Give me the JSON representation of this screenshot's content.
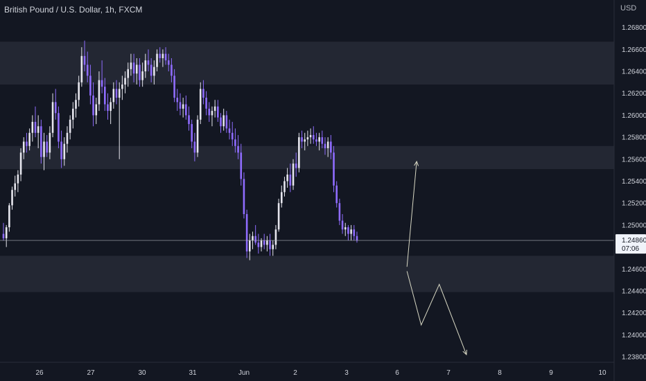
{
  "header": {
    "symbol_title": "British Pound / U.S. Dollar, 1h, FXCM",
    "currency": "USD"
  },
  "colors": {
    "background": "#131722",
    "zone": "#2a2e39",
    "bull": "#e6e6ee",
    "bear": "#8f6cff",
    "axis_text": "#d1d4dc",
    "price_line": "#b2b5be",
    "drawing": "#d8d8c4"
  },
  "price_label": {
    "value": "1.24860",
    "countdown": "07:06"
  },
  "chart_data": {
    "type": "candlestick",
    "ylim": [
      1.2375,
      1.2705
    ],
    "y_ticks": [
      "1.26800",
      "1.26600",
      "1.26400",
      "1.26200",
      "1.26000",
      "1.25800",
      "1.25600",
      "1.25400",
      "1.25200",
      "1.25000",
      "1.24600",
      "1.24400",
      "1.24200",
      "1.24000",
      "1.23800"
    ],
    "x_ticks": [
      "26",
      "27",
      "30",
      "31",
      "Jun",
      "2",
      "3",
      "6",
      "7",
      "8",
      "9",
      "10"
    ],
    "last_price": 1.2486,
    "zones": [
      {
        "from": 1.2628,
        "to": 1.2667
      },
      {
        "from": 1.2551,
        "to": 1.2572
      },
      {
        "from": 1.2439,
        "to": 1.2472
      }
    ],
    "candles": [
      [
        1.2492,
        1.2502,
        1.2486,
        1.2488
      ],
      [
        1.2488,
        1.25,
        1.248,
        1.2498
      ],
      [
        1.2498,
        1.252,
        1.2494,
        1.2518
      ],
      [
        1.2518,
        1.2535,
        1.2514,
        1.2532
      ],
      [
        1.2532,
        1.2545,
        1.2526,
        1.2538
      ],
      [
        1.2538,
        1.255,
        1.253,
        1.2546
      ],
      [
        1.2546,
        1.257,
        1.254,
        1.2566
      ],
      [
        1.2566,
        1.258,
        1.256,
        1.2576
      ],
      [
        1.2576,
        1.2584,
        1.2566,
        1.2572
      ],
      [
        1.2572,
        1.2588,
        1.2568,
        1.2584
      ],
      [
        1.2584,
        1.26,
        1.2576,
        1.2594
      ],
      [
        1.2594,
        1.2608,
        1.258,
        1.2584
      ],
      [
        1.2584,
        1.26,
        1.257,
        1.259
      ],
      [
        1.259,
        1.2596,
        1.2556,
        1.2562
      ],
      [
        1.2562,
        1.2584,
        1.255,
        1.2576
      ],
      [
        1.2576,
        1.2582,
        1.2562,
        1.2566
      ],
      [
        1.2566,
        1.259,
        1.256,
        1.2584
      ],
      [
        1.2584,
        1.262,
        1.258,
        1.2612
      ],
      [
        1.2612,
        1.2624,
        1.2596,
        1.2602
      ],
      [
        1.2602,
        1.2608,
        1.257,
        1.2576
      ],
      [
        1.2576,
        1.2586,
        1.2552,
        1.256
      ],
      [
        1.256,
        1.258,
        1.2554,
        1.2574
      ],
      [
        1.2574,
        1.259,
        1.2566,
        1.2584
      ],
      [
        1.2584,
        1.26,
        1.2578,
        1.2596
      ],
      [
        1.2596,
        1.2612,
        1.2588,
        1.2606
      ],
      [
        1.2606,
        1.262,
        1.2598,
        1.2614
      ],
      [
        1.2614,
        1.2636,
        1.2608,
        1.263
      ],
      [
        1.263,
        1.2662,
        1.2626,
        1.2654
      ],
      [
        1.2654,
        1.2668,
        1.264,
        1.2646
      ],
      [
        1.2646,
        1.2658,
        1.263,
        1.2636
      ],
      [
        1.2636,
        1.2646,
        1.261,
        1.2618
      ],
      [
        1.2618,
        1.263,
        1.259,
        1.26
      ],
      [
        1.26,
        1.2616,
        1.2592,
        1.261
      ],
      [
        1.261,
        1.264,
        1.2604,
        1.2632
      ],
      [
        1.2632,
        1.265,
        1.262,
        1.2626
      ],
      [
        1.2626,
        1.2634,
        1.2604,
        1.261
      ],
      [
        1.261,
        1.262,
        1.2596,
        1.2604
      ],
      [
        1.2604,
        1.2616,
        1.2592,
        1.2612
      ],
      [
        1.2612,
        1.263,
        1.2606,
        1.2624
      ],
      [
        1.2624,
        1.2632,
        1.261,
        1.2616
      ],
      [
        1.2616,
        1.263,
        1.256,
        1.2624
      ],
      [
        1.2624,
        1.2636,
        1.2614,
        1.2628
      ],
      [
        1.2628,
        1.264,
        1.262,
        1.2634
      ],
      [
        1.2634,
        1.2648,
        1.2626,
        1.2642
      ],
      [
        1.2642,
        1.2656,
        1.2636,
        1.2648
      ],
      [
        1.2648,
        1.2656,
        1.263,
        1.2638
      ],
      [
        1.2638,
        1.2652,
        1.2628,
        1.2646
      ],
      [
        1.2646,
        1.2652,
        1.2626,
        1.2632
      ],
      [
        1.2632,
        1.2648,
        1.2626,
        1.264
      ],
      [
        1.264,
        1.2656,
        1.2634,
        1.265
      ],
      [
        1.265,
        1.266,
        1.264,
        1.2646
      ],
      [
        1.2646,
        1.2652,
        1.263,
        1.2636
      ],
      [
        1.2636,
        1.265,
        1.2628,
        1.2644
      ],
      [
        1.2644,
        1.266,
        1.264,
        1.2656
      ],
      [
        1.2656,
        1.2662,
        1.2648,
        1.2652
      ],
      [
        1.2652,
        1.266,
        1.2644,
        1.2656
      ],
      [
        1.2656,
        1.2662,
        1.2646,
        1.265
      ],
      [
        1.265,
        1.2656,
        1.264,
        1.2646
      ],
      [
        1.2646,
        1.2652,
        1.263,
        1.2636
      ],
      [
        1.2636,
        1.2642,
        1.2612,
        1.2616
      ],
      [
        1.2616,
        1.2624,
        1.2604,
        1.2612
      ],
      [
        1.2612,
        1.262,
        1.26,
        1.2606
      ],
      [
        1.2606,
        1.2616,
        1.2598,
        1.261
      ],
      [
        1.261,
        1.2618,
        1.2596,
        1.26
      ],
      [
        1.26,
        1.2608,
        1.2586,
        1.2592
      ],
      [
        1.2592,
        1.2596,
        1.257,
        1.2576
      ],
      [
        1.2576,
        1.2584,
        1.2558,
        1.2566
      ],
      [
        1.2566,
        1.26,
        1.2562,
        1.2596
      ],
      [
        1.2596,
        1.263,
        1.2592,
        1.2624
      ],
      [
        1.2624,
        1.2632,
        1.261,
        1.2616
      ],
      [
        1.2616,
        1.2622,
        1.26,
        1.2606
      ],
      [
        1.2606,
        1.2612,
        1.2594,
        1.26
      ],
      [
        1.26,
        1.2608,
        1.259,
        1.2604
      ],
      [
        1.2604,
        1.2614,
        1.2598,
        1.2608
      ],
      [
        1.2608,
        1.2614,
        1.2594,
        1.2598
      ],
      [
        1.2598,
        1.2602,
        1.2584,
        1.259
      ],
      [
        1.259,
        1.2606,
        1.2586,
        1.26
      ],
      [
        1.26,
        1.2604,
        1.2584,
        1.2588
      ],
      [
        1.2588,
        1.2596,
        1.2578,
        1.2584
      ],
      [
        1.2584,
        1.2594,
        1.2572,
        1.2578
      ],
      [
        1.2578,
        1.2588,
        1.2566,
        1.2572
      ],
      [
        1.2572,
        1.2582,
        1.256,
        1.2566
      ],
      [
        1.2566,
        1.2574,
        1.2536,
        1.2542
      ],
      [
        1.2542,
        1.2548,
        1.2506,
        1.251
      ],
      [
        1.251,
        1.2514,
        1.247,
        1.2476
      ],
      [
        1.2476,
        1.2492,
        1.2468,
        1.2486
      ],
      [
        1.2486,
        1.2494,
        1.2478,
        1.249
      ],
      [
        1.249,
        1.25,
        1.2482,
        1.2484
      ],
      [
        1.2484,
        1.2492,
        1.2474,
        1.248
      ],
      [
        1.248,
        1.2488,
        1.2476,
        1.2486
      ],
      [
        1.2486,
        1.2492,
        1.2478,
        1.2482
      ],
      [
        1.2482,
        1.249,
        1.2476,
        1.2486
      ],
      [
        1.2486,
        1.2492,
        1.2472,
        1.2478
      ],
      [
        1.2478,
        1.2486,
        1.2472,
        1.2482
      ],
      [
        1.2482,
        1.25,
        1.2478,
        1.2496
      ],
      [
        1.2496,
        1.2524,
        1.2494,
        1.252
      ],
      [
        1.252,
        1.2536,
        1.2516,
        1.253
      ],
      [
        1.253,
        1.2544,
        1.2526,
        1.254
      ],
      [
        1.254,
        1.2552,
        1.2534,
        1.2546
      ],
      [
        1.2546,
        1.2556,
        1.253,
        1.2536
      ],
      [
        1.2536,
        1.256,
        1.2532,
        1.2556
      ],
      [
        1.2556,
        1.2566,
        1.2544,
        1.2552
      ],
      [
        1.2552,
        1.2584,
        1.2548,
        1.258
      ],
      [
        1.258,
        1.2586,
        1.257,
        1.2576
      ],
      [
        1.2576,
        1.2584,
        1.2568,
        1.2578
      ],
      [
        1.2578,
        1.2586,
        1.2572,
        1.258
      ],
      [
        1.258,
        1.2588,
        1.2574,
        1.2582
      ],
      [
        1.2582,
        1.259,
        1.2574,
        1.2578
      ],
      [
        1.2578,
        1.2584,
        1.2572,
        1.2576
      ],
      [
        1.2576,
        1.2584,
        1.2568,
        1.258
      ],
      [
        1.258,
        1.2586,
        1.257,
        1.2574
      ],
      [
        1.2574,
        1.258,
        1.2564,
        1.257
      ],
      [
        1.257,
        1.258,
        1.2562,
        1.2576
      ],
      [
        1.2576,
        1.2582,
        1.256,
        1.2566
      ],
      [
        1.2566,
        1.2572,
        1.253,
        1.2536
      ],
      [
        1.2536,
        1.254,
        1.2516,
        1.252
      ],
      [
        1.252,
        1.2524,
        1.25,
        1.2504
      ],
      [
        1.2504,
        1.251,
        1.2492,
        1.2496
      ],
      [
        1.2496,
        1.2502,
        1.249,
        1.2498
      ],
      [
        1.2498,
        1.25,
        1.2486,
        1.2492
      ],
      [
        1.2492,
        1.25,
        1.2486,
        1.2496
      ],
      [
        1.2496,
        1.25,
        1.2486,
        1.249
      ],
      [
        1.249,
        1.2494,
        1.2484,
        1.2486
      ]
    ]
  },
  "drawings": {
    "up_arrow": [
      [
        1.2462,
        0.63
      ],
      [
        1.2558,
        0.645
      ]
    ],
    "zigzag": [
      [
        1.2458,
        0.63
      ],
      [
        1.2409,
        0.652
      ],
      [
        1.2446,
        0.68
      ],
      [
        1.2382,
        0.722
      ]
    ]
  }
}
